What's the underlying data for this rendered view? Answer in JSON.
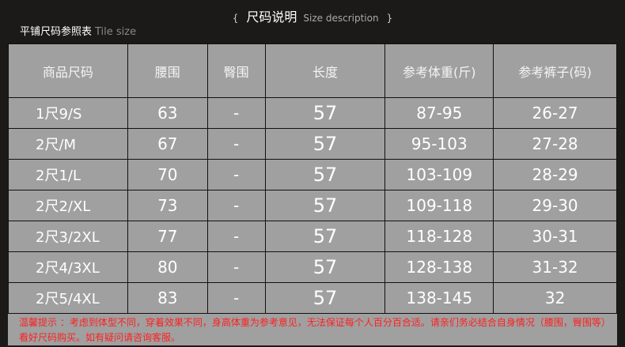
{
  "title": {
    "open": "{",
    "main": "尺码说明",
    "en": "Size description",
    "close": "}"
  },
  "subtitle": {
    "cn": "平铺尺码参照表",
    "en": "Tile size"
  },
  "headers": [
    "商品尺码",
    "腰围",
    "臀围",
    "长度",
    "参考体重(斤)",
    "参考裤子(码)"
  ],
  "rows": [
    [
      "1尺9/S",
      "63",
      "-",
      "57",
      "87-95",
      "26-27"
    ],
    [
      "2尺/M",
      "67",
      "-",
      "57",
      "95-103",
      "27-28"
    ],
    [
      "2尺1/L",
      "70",
      "-",
      "57",
      "103-109",
      "28-29"
    ],
    [
      "2尺2/XL",
      "73",
      "-",
      "57",
      "109-118",
      "29-30"
    ],
    [
      "2尺3/2XL",
      "77",
      "-",
      "57",
      "118-128",
      "30-31"
    ],
    [
      "2尺4/3XL",
      "80",
      "-",
      "57",
      "128-138",
      "31-32"
    ],
    [
      "2尺5/4XL",
      "83",
      "-",
      "57",
      "138-145",
      "32"
    ]
  ],
  "note": "温馨提示 ：考虑到体型不同，穿着效果不同，身高体重为参考意见，无法保证每个人百分百合适。请亲们务必结合自身情况（腰围，臀围等）看好尺码购买。如有疑问请咨询客服。"
}
